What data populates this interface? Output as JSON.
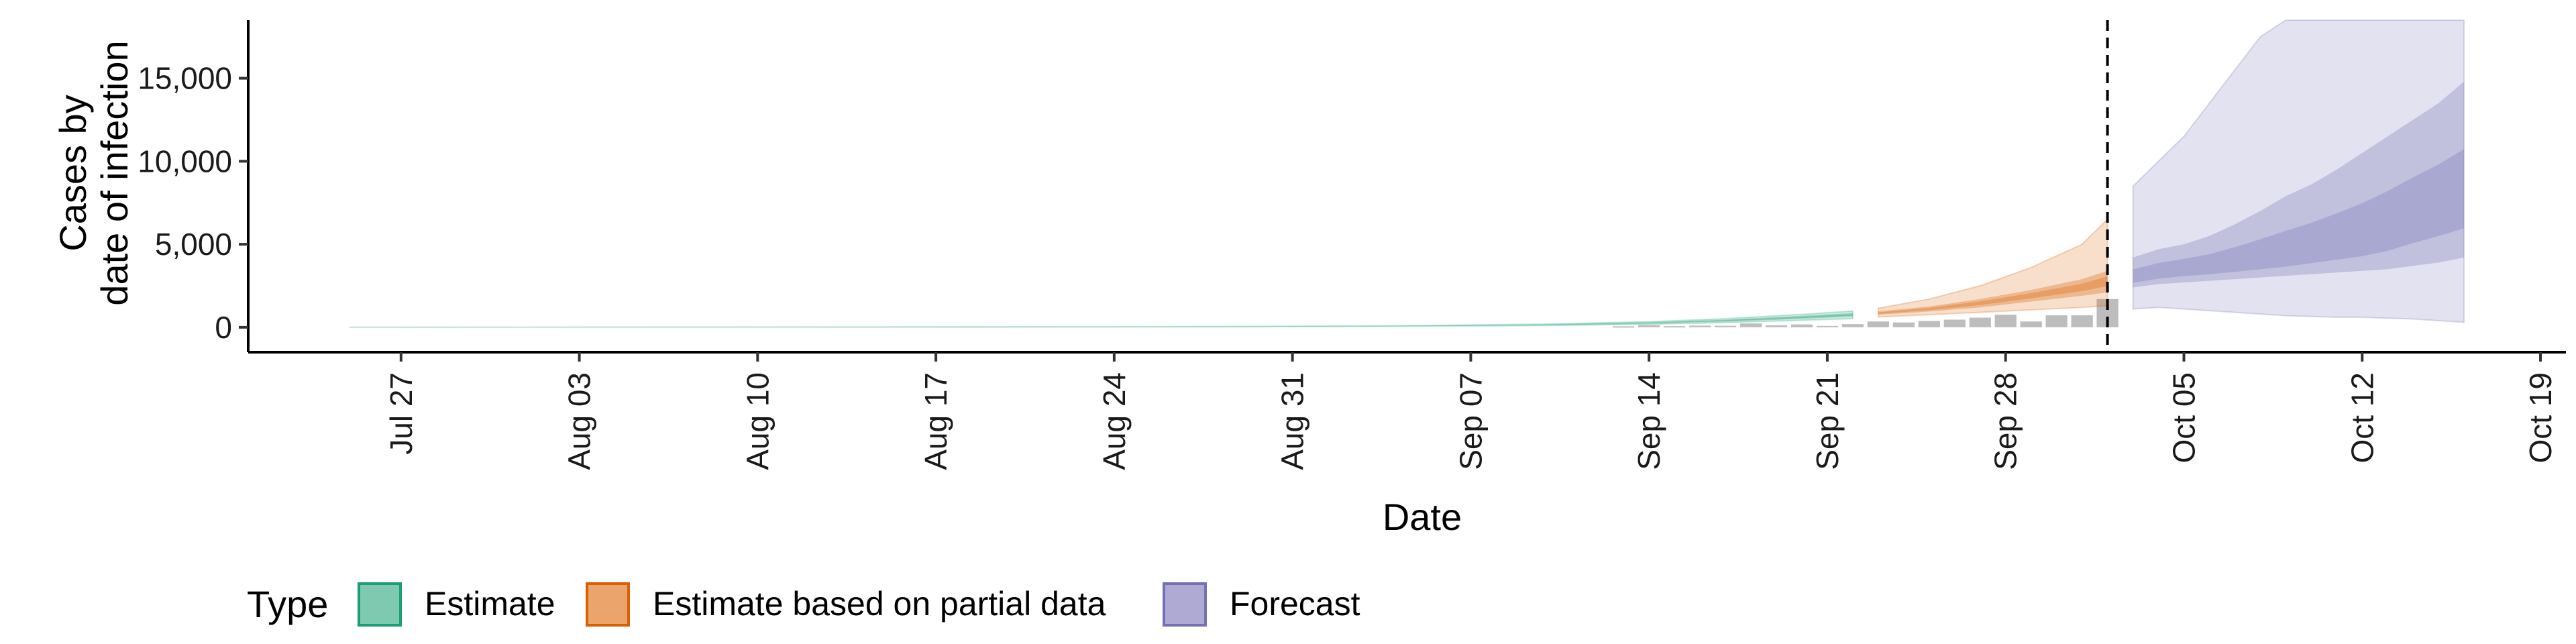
{
  "chart_data": {
    "type": "area",
    "xlabel": "Date",
    "ylabel": "Cases by\ndate of infection",
    "ylim": [
      -1500,
      18500
    ],
    "yticks": [
      0,
      5000,
      10000,
      15000
    ],
    "ytick_labels": [
      "0",
      "5,000",
      "10,000",
      "15,000"
    ],
    "xlim": [
      "2020-07-21",
      "2020-10-20"
    ],
    "xticks": [
      "2020-07-27",
      "2020-08-03",
      "2020-08-10",
      "2020-08-17",
      "2020-08-24",
      "2020-08-31",
      "2020-09-07",
      "2020-09-14",
      "2020-09-21",
      "2020-09-28",
      "2020-10-05",
      "2020-10-12",
      "2020-10-19"
    ],
    "xtick_labels": [
      "Jul 27",
      "Aug 03",
      "Aug 10",
      "Aug 17",
      "Aug 24",
      "Aug 31",
      "Sep 07",
      "Sep 14",
      "Sep 21",
      "Sep 28",
      "Oct 05",
      "Oct 12",
      "Oct 19"
    ],
    "grid": false,
    "reference_line": {
      "date": "2020-10-02",
      "style": "dashed"
    },
    "legend": {
      "title": "Type",
      "position": "bottom-left",
      "entries": [
        {
          "label": "Estimate",
          "fill": "#7fc9b1",
          "stroke": "#1b9e77"
        },
        {
          "label": "Estimate based on partial data",
          "fill": "#eba46c",
          "stroke": "#d95f02"
        },
        {
          "label": "Forecast",
          "fill": "#aeaad4",
          "stroke": "#7570b3"
        }
      ]
    },
    "colors": {
      "estimate": "#1b9e77",
      "partial": "#d95f02",
      "forecast": "#7570b3",
      "observed_bars": "#bdbdbd"
    },
    "observed_cases": {
      "x": [
        "2020-09-13",
        "2020-09-14",
        "2020-09-15",
        "2020-09-16",
        "2020-09-17",
        "2020-09-18",
        "2020-09-19",
        "2020-09-20",
        "2020-09-21",
        "2020-09-22",
        "2020-09-23",
        "2020-09-24",
        "2020-09-25",
        "2020-09-26",
        "2020-09-27",
        "2020-09-28",
        "2020-09-29",
        "2020-09-30",
        "2020-10-01",
        "2020-10-02"
      ],
      "y": [
        60,
        130,
        70,
        100,
        90,
        230,
        120,
        170,
        80,
        190,
        350,
        290,
        380,
        460,
        580,
        760,
        350,
        720,
        720,
        1700
      ]
    },
    "series": [
      {
        "name": "Estimate",
        "x": [
          "2020-07-25",
          "2020-08-01",
          "2020-08-08",
          "2020-08-15",
          "2020-08-22",
          "2020-08-29",
          "2020-09-05",
          "2020-09-10",
          "2020-09-14",
          "2020-09-17",
          "2020-09-20",
          "2020-09-22"
        ],
        "median": [
          5,
          8,
          12,
          18,
          26,
          40,
          80,
          150,
          260,
          400,
          600,
          750
        ],
        "lower_50": [
          3,
          6,
          10,
          15,
          22,
          35,
          70,
          130,
          220,
          340,
          510,
          640
        ],
        "upper_50": [
          7,
          10,
          14,
          21,
          30,
          46,
          92,
          170,
          300,
          460,
          690,
          860
        ],
        "lower_90": [
          1,
          3,
          6,
          10,
          16,
          28,
          60,
          110,
          180,
          280,
          420,
          520
        ],
        "upper_90": [
          9,
          13,
          18,
          26,
          36,
          54,
          105,
          195,
          340,
          520,
          780,
          980
        ]
      },
      {
        "name": "Estimate based on partial data",
        "x": [
          "2020-09-23",
          "2020-09-25",
          "2020-09-27",
          "2020-09-29",
          "2020-10-01",
          "2020-10-02"
        ],
        "median": [
          850,
          1100,
          1450,
          1900,
          2400,
          2800
        ],
        "lower_50": [
          750,
          950,
          1200,
          1550,
          1900,
          2100
        ],
        "upper_50": [
          960,
          1250,
          1700,
          2250,
          2900,
          3400
        ],
        "lower_90": [
          620,
          760,
          900,
          1050,
          1200,
          1300
        ],
        "upper_90": [
          1150,
          1700,
          2500,
          3600,
          5000,
          6500
        ]
      },
      {
        "name": "Forecast",
        "x": [
          "2020-10-03",
          "2020-10-04",
          "2020-10-05",
          "2020-10-06",
          "2020-10-07",
          "2020-10-08",
          "2020-10-09",
          "2020-10-10",
          "2020-10-11",
          "2020-10-12",
          "2020-10-13",
          "2020-10-14",
          "2020-10-15",
          "2020-10-16"
        ],
        "median": [
          2900,
          3200,
          3400,
          3500,
          3700,
          3900,
          4100,
          4400,
          4700,
          5000,
          5500,
          6200,
          6800,
          7400
        ],
        "lower_50": [
          2400,
          2600,
          2700,
          2800,
          2900,
          3000,
          3100,
          3200,
          3300,
          3400,
          3500,
          3700,
          3900,
          4200
        ],
        "upper_50": [
          4200,
          4700,
          5000,
          5500,
          6200,
          7000,
          7900,
          8600,
          9500,
          10500,
          11500,
          12500,
          13500,
          14800
        ],
        "lower_90": [
          1100,
          1200,
          1100,
          1000,
          900,
          800,
          700,
          650,
          600,
          600,
          550,
          500,
          400,
          300
        ],
        "upper_90": [
          8500,
          10000,
          11500,
          13500,
          15500,
          17500,
          18500,
          18500,
          18500,
          18500,
          18500,
          18500,
          18500,
          18500
        ]
      }
    ]
  }
}
